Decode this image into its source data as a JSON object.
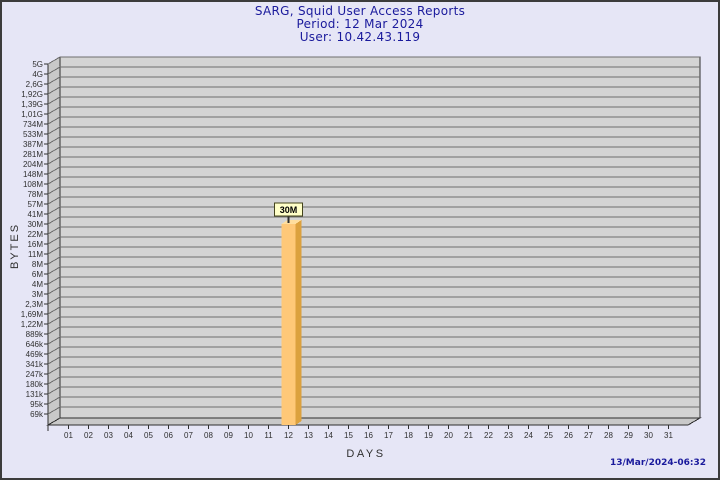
{
  "header": {
    "title": "SARG, Squid User Access Reports",
    "period": "Period: 12 Mar 2024",
    "user": "User: 10.42.43.119"
  },
  "footer": {
    "generated": "13/Mar/2024-06:32"
  },
  "chart_data": {
    "type": "bar",
    "style": "3d-vertical-bar",
    "title": "SARG, Squid User Access Reports",
    "subtitle": [
      "Period: 12 Mar 2024",
      "User: 10.42.43.119"
    ],
    "xlabel": "DAYS",
    "ylabel": "BYTES",
    "y_scale": "quasi-logarithmic",
    "grid": true,
    "y_ticks": [
      "5G",
      "4G",
      "2,6G",
      "1,92G",
      "1,39G",
      "1,01G",
      "734M",
      "533M",
      "387M",
      "281M",
      "204M",
      "148M",
      "108M",
      "78M",
      "57M",
      "41M",
      "30M",
      "22M",
      "16M",
      "11M",
      "8M",
      "6M",
      "4M",
      "3M",
      "2,3M",
      "1,69M",
      "1,22M",
      "889k",
      "646k",
      "469k",
      "341k",
      "247k",
      "180k",
      "131k",
      "95k",
      "69k"
    ],
    "categories": [
      "01",
      "02",
      "03",
      "04",
      "05",
      "06",
      "07",
      "08",
      "09",
      "10",
      "11",
      "12",
      "13",
      "14",
      "15",
      "16",
      "17",
      "18",
      "19",
      "20",
      "21",
      "22",
      "23",
      "24",
      "25",
      "26",
      "27",
      "28",
      "29",
      "30",
      "31"
    ],
    "series": [
      {
        "name": "bytes",
        "values": [
          0,
          0,
          0,
          0,
          0,
          0,
          0,
          0,
          0,
          0,
          0,
          30000000,
          0,
          0,
          0,
          0,
          0,
          0,
          0,
          0,
          0,
          0,
          0,
          0,
          0,
          0,
          0,
          0,
          0,
          0,
          0
        ]
      }
    ],
    "bar_labels": [
      null,
      null,
      null,
      null,
      null,
      null,
      null,
      null,
      null,
      null,
      null,
      "30M",
      null,
      null,
      null,
      null,
      null,
      null,
      null,
      null,
      null,
      null,
      null,
      null,
      null,
      null,
      null,
      null,
      null,
      null,
      null
    ],
    "colors": {
      "page_bg": "#e6e6f6",
      "page_border": "#3c3c3c",
      "plot_face": "#d4d4d4",
      "plot_side": "#c9c9c9",
      "grid": "#6e6e6e",
      "frame": "#2e2e2e",
      "text": "#303030",
      "title_text": "#1a1a9c",
      "bar_front": "#ffc878",
      "bar_side": "#dca13e",
      "bar_top": "#ffde9e",
      "annotation_bg": "#ffffc8",
      "annotation_border": "#44441c"
    }
  }
}
